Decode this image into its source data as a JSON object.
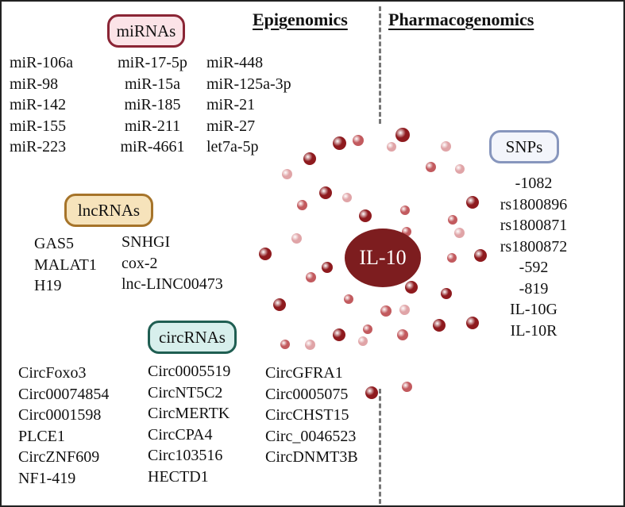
{
  "headers": {
    "left": "Epigenomics",
    "right": "Pharmacogenomics"
  },
  "center": "IL-10",
  "mirnas": {
    "label": "miRNAs",
    "col1": [
      "miR-106a",
      "miR-98",
      "miR-142",
      "miR-155",
      "miR-223"
    ],
    "col2": [
      "miR-17-5p",
      "miR-15a",
      "miR-185",
      "miR-211",
      "miR-4661"
    ],
    "col3": [
      "miR-448",
      "miR-125a-3p",
      "miR-21",
      "miR-27",
      "let7a-5p"
    ]
  },
  "lncrnas": {
    "label": "lncRNAs",
    "col1": [
      "GAS5",
      "MALAT1",
      "H19"
    ],
    "col2": [
      "SNHGI",
      "cox-2",
      "lnc-LINC00473"
    ]
  },
  "circrnas": {
    "label": "circRNAs",
    "col1": [
      "CircFoxo3",
      "Circ00074854",
      "Circ0001598",
      "PLCE1",
      "CircZNF609",
      "NF1-419"
    ],
    "col2": [
      "Circ0005519",
      "CircNT5C2",
      "CircMERTK",
      "CircCPA4",
      "Circ103516",
      "HECTD1"
    ],
    "col3": [
      "CircGFRA1",
      "Circ0005075",
      "CircCHST15",
      "Circ_0046523",
      "CircDNMT3B"
    ]
  },
  "snps": {
    "label": "SNPs",
    "items": [
      "-1082",
      "rs1800896",
      "rs1800871",
      "rs1800872",
      "-592",
      "-819",
      "IL-10G",
      "IL-10R"
    ]
  },
  "colors": {
    "dark": "#8e1a1e",
    "medium": "#c25a5e",
    "light": "#e0a4a7",
    "center": "#7d1d1f",
    "mirna_border": "#8a2535",
    "mirna_fill": "#fbe3e7",
    "lnc_border": "#a6742a",
    "lnc_fill": "#f6e3bb",
    "circ_border": "#1f5e52",
    "circ_fill": "#d7efec",
    "snp_border": "#8796bd",
    "snp_fill": "#f3f5fb"
  }
}
